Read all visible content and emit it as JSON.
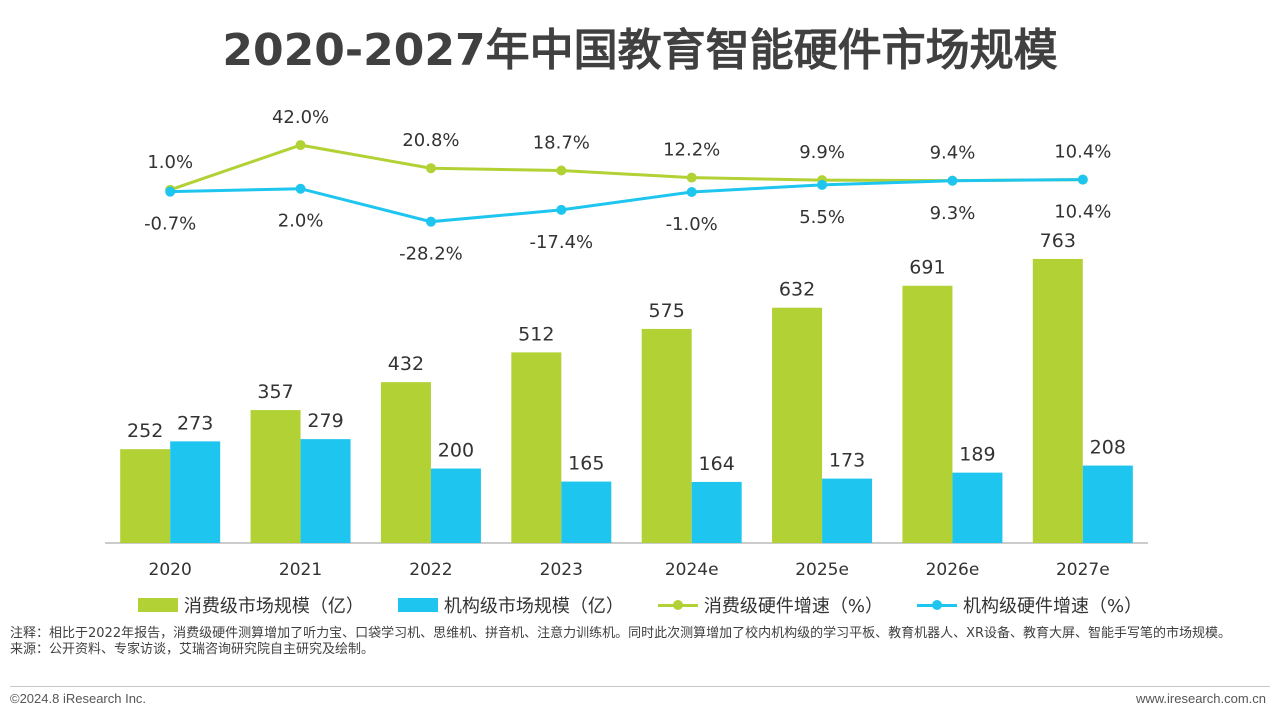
{
  "title": "2020-2027年中国教育智能硬件市场规模",
  "colors": {
    "consumer": "#b1d135",
    "institution": "#1ec6ef",
    "text": "#333333"
  },
  "legend": {
    "consumer_bar": "消费级市场规模（亿）",
    "institution_bar": "机构级市场规模（亿）",
    "consumer_growth": "消费级硬件增速（%）",
    "institution_growth": "机构级硬件增速（%）"
  },
  "chart_data": {
    "type": "bar",
    "categories": [
      "2020",
      "2021",
      "2022",
      "2023",
      "2024e",
      "2025e",
      "2026e",
      "2027e"
    ],
    "series": [
      {
        "name": "消费级市场规模（亿）",
        "type": "bar",
        "values": [
          252,
          357,
          432,
          512,
          575,
          632,
          691,
          763
        ]
      },
      {
        "name": "机构级市场规模（亿）",
        "type": "bar",
        "values": [
          273,
          279,
          200,
          165,
          164,
          173,
          189,
          208
        ]
      },
      {
        "name": "消费级硬件增速（%）",
        "type": "line",
        "values": [
          1.0,
          42.0,
          20.8,
          18.7,
          12.2,
          9.9,
          9.4,
          10.4
        ],
        "labels": [
          "1.0%",
          "42.0%",
          "20.8%",
          "18.7%",
          "12.2%",
          "9.9%",
          "9.4%",
          "10.4%"
        ]
      },
      {
        "name": "机构级硬件增速（%）",
        "type": "line",
        "values": [
          -0.7,
          2.0,
          -28.2,
          -17.4,
          -1.0,
          5.5,
          9.3,
          10.4
        ],
        "labels": [
          "-0.7%",
          "2.0%",
          "-28.2%",
          "-17.4%",
          "-1.0%",
          "5.5%",
          "9.3%",
          "10.4%"
        ]
      }
    ],
    "bar_ylim": [
      0,
      900
    ],
    "grid": false,
    "legend_position": "bottom"
  },
  "notes": {
    "note": "注释：相比于2022年报告，消费级硬件测算增加了听力宝、口袋学习机、思维机、拼音机、注意力训练机。同时此次测算增加了校内机构级的学习平板、教育机器人、XR设备、教育大屏、智能手写笔的市场规模。",
    "source": "来源：公开资料、专家访谈，艾瑞咨询研究院自主研究及绘制。"
  },
  "footer": {
    "copyright": "©2024.8 iResearch Inc.",
    "website": "www.iresearch.com.cn"
  }
}
